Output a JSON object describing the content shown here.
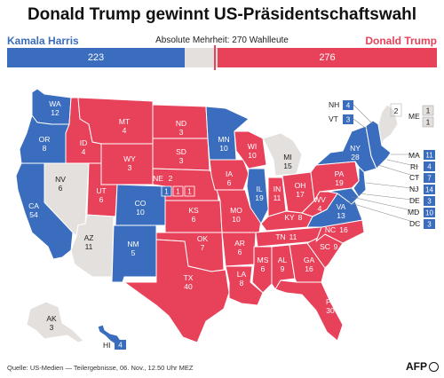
{
  "title": "Donald Trump gewinnt US-Präsidentschaftswahl",
  "candidates": {
    "left": {
      "name": "Kamala Harris",
      "votes": "223",
      "color": "#3a6dbd"
    },
    "right": {
      "name": "Donald Trump",
      "votes": "276",
      "color": "#e8425b"
    }
  },
  "majority_note": "Absolute Mehrheit: 270 Wahlleute",
  "colors": {
    "dem": "#3a6dbd",
    "rep": "#e8425b",
    "pending": "#e3e0dd"
  },
  "states": {
    "WA": {
      "abbr": "WA",
      "ev": "12"
    },
    "OR": {
      "abbr": "OR",
      "ev": "8"
    },
    "CA": {
      "abbr": "CA",
      "ev": "54"
    },
    "NV": {
      "abbr": "NV",
      "ev": "6"
    },
    "ID": {
      "abbr": "ID",
      "ev": "4"
    },
    "UT": {
      "abbr": "UT",
      "ev": "6"
    },
    "AZ": {
      "abbr": "AZ",
      "ev": "11"
    },
    "MT": {
      "abbr": "MT",
      "ev": "4"
    },
    "WY": {
      "abbr": "WY",
      "ev": "3"
    },
    "CO": {
      "abbr": "CO",
      "ev": "10"
    },
    "NM": {
      "abbr": "NM",
      "ev": "5"
    },
    "ND": {
      "abbr": "ND",
      "ev": "3"
    },
    "SD": {
      "abbr": "SD",
      "ev": "3"
    },
    "NE": {
      "abbr": "NE",
      "ev": "2"
    },
    "KS": {
      "abbr": "KS",
      "ev": "6"
    },
    "OK": {
      "abbr": "OK",
      "ev": "7"
    },
    "TX": {
      "abbr": "TX",
      "ev": "40"
    },
    "MN": {
      "abbr": "MN",
      "ev": "10"
    },
    "IA": {
      "abbr": "IA",
      "ev": "6"
    },
    "MO": {
      "abbr": "MO",
      "ev": "10"
    },
    "AR": {
      "abbr": "AR",
      "ev": "6"
    },
    "LA": {
      "abbr": "LA",
      "ev": "8"
    },
    "WI": {
      "abbr": "WI",
      "ev": "10"
    },
    "IL": {
      "abbr": "IL",
      "ev": "19"
    },
    "MI": {
      "abbr": "MI",
      "ev": "15"
    },
    "IN": {
      "abbr": "IN",
      "ev": "11"
    },
    "OH": {
      "abbr": "OH",
      "ev": "17"
    },
    "KY": {
      "abbr": "KY",
      "ev": "8"
    },
    "TN": {
      "abbr": "TN",
      "ev": "11"
    },
    "MS": {
      "abbr": "MS",
      "ev": "6"
    },
    "AL": {
      "abbr": "AL",
      "ev": "9"
    },
    "GA": {
      "abbr": "GA",
      "ev": "16"
    },
    "FL": {
      "abbr": "FL",
      "ev": "30"
    },
    "SC": {
      "abbr": "SC",
      "ev": "9"
    },
    "NC": {
      "abbr": "NC",
      "ev": "16"
    },
    "VA": {
      "abbr": "VA",
      "ev": "13"
    },
    "WV": {
      "abbr": "WV",
      "ev": "4"
    },
    "PA": {
      "abbr": "PA",
      "ev": "19"
    },
    "NY": {
      "abbr": "NY",
      "ev": "28"
    },
    "AK": {
      "abbr": "AK",
      "ev": "3"
    },
    "HI": {
      "abbr": "HI",
      "ev": "4"
    },
    "NE_CD1": "1",
    "NE_CD2": "1",
    "NE_CD3": "1",
    "ME": {
      "abbr": "ME",
      "ev": "2"
    },
    "ME_CD1": "1",
    "ME_CD2": "1"
  },
  "small_states": [
    {
      "abbr": "NH",
      "ev": "4"
    },
    {
      "abbr": "VT",
      "ev": "3"
    },
    {
      "abbr": "MA",
      "ev": "11"
    },
    {
      "abbr": "RI",
      "ev": "4"
    },
    {
      "abbr": "CT",
      "ev": "7"
    },
    {
      "abbr": "NJ",
      "ev": "14"
    },
    {
      "abbr": "DE",
      "ev": "3"
    },
    {
      "abbr": "MD",
      "ev": "10"
    },
    {
      "abbr": "DC",
      "ev": "3"
    }
  ],
  "footer": "Quelle: US-Medien — Teilergebnisse, 06. Nov., 12.50 Uhr MEZ",
  "logo": "AFP"
}
